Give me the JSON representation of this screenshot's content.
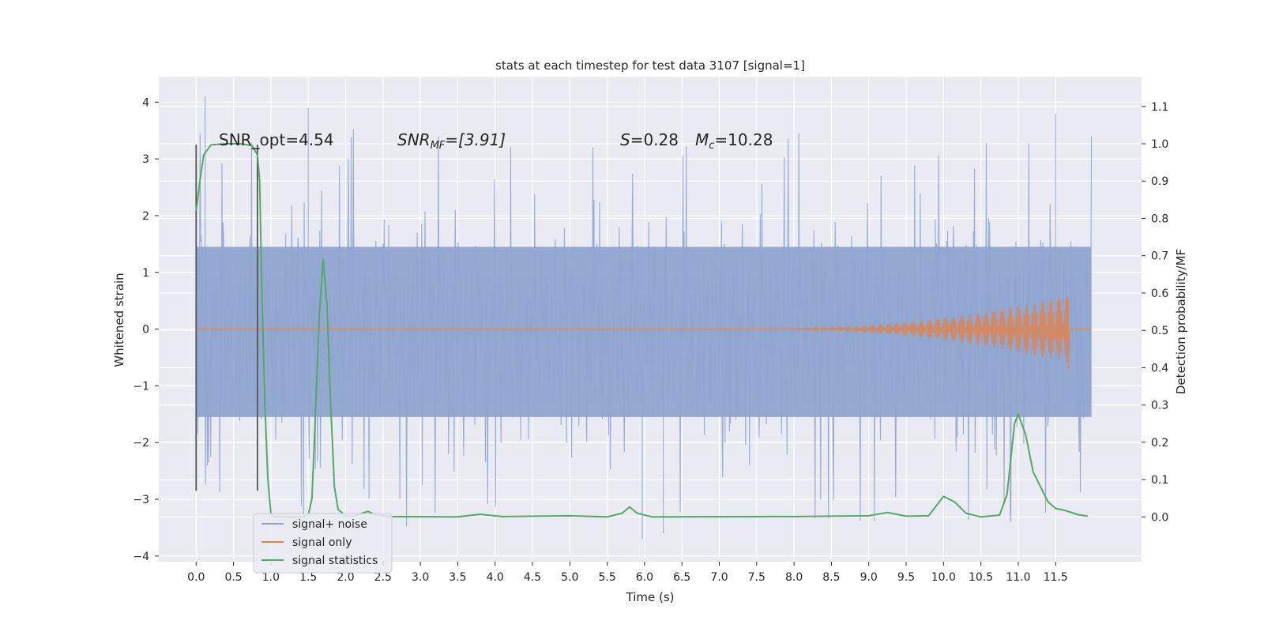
{
  "chart_data": {
    "type": "line",
    "title": "stats at each timestep for test data 3107 [signal=1]",
    "xlabel": "Time (s)",
    "ylabel_left": "Whitened strain",
    "ylabel_right": "Detection probability/MF",
    "xlim": [
      -0.5,
      12.65
    ],
    "ylim_left": [
      -4.1,
      4.45
    ],
    "ylim_right": [
      -0.12,
      1.18
    ],
    "x_ticks": [
      0.0,
      0.5,
      1.0,
      1.5,
      2.0,
      2.5,
      3.0,
      3.5,
      4.0,
      4.5,
      5.0,
      5.5,
      6.0,
      6.5,
      7.0,
      7.5,
      8.0,
      8.5,
      9.0,
      9.5,
      10.0,
      10.5,
      11.0,
      11.5
    ],
    "x_tick_labels": [
      "0.0",
      "0.5",
      "1.0",
      "1.5",
      "2.0",
      "2.5",
      "3.0",
      "3.5",
      "4.0",
      "4.5",
      "5.0",
      "5.5",
      "6.0",
      "6.5",
      "7.0",
      "7.5",
      "8.0",
      "8.5",
      "9.0",
      "9.5",
      "10.0",
      "10.5",
      "11.0",
      "11.5"
    ],
    "y_left_ticks": [
      -4,
      -3,
      -2,
      -1,
      0,
      1,
      2,
      3,
      4
    ],
    "y_left_tick_labels": [
      "−4",
      "−3",
      "−2",
      "−1",
      "0",
      "1",
      "2",
      "3",
      "4"
    ],
    "y_right_ticks": [
      0.0,
      0.1,
      0.2,
      0.3,
      0.4,
      0.5,
      0.6,
      0.7,
      0.8,
      0.9,
      1.0,
      1.1
    ],
    "y_right_tick_labels": [
      "0.0",
      "0.1",
      "0.2",
      "0.3",
      "0.4",
      "0.5",
      "0.6",
      "0.7",
      "0.8",
      "0.9",
      "1.0",
      "1.1"
    ],
    "grid": true,
    "legend_position": "lower-left",
    "background": "#eaeaf2",
    "annotations": {
      "snr_opt": "SNR_opt=4.54",
      "snr_mf_main": "SNR",
      "snr_mf_sub": "MF",
      "snr_mf_rest": "=[3.91]",
      "s_main": "S",
      "s_rest": "=0.28",
      "mc_main": "M",
      "mc_sub": "c",
      "mc_rest": "=10.28"
    },
    "vertical_markers": [
      {
        "x": 0.0,
        "y_range": [
          -2.85,
          3.25
        ]
      },
      {
        "x": 0.82,
        "y_range": [
          -2.85,
          3.25
        ]
      }
    ],
    "series": [
      {
        "name": "signal+ noise",
        "axis": "left",
        "color": "#8fa5cf",
        "kind": "noise",
        "x_range": [
          0.0,
          11.98
        ],
        "core_band": [
          -1.55,
          1.45
        ],
        "spike_range": [
          -3.7,
          4.1
        ],
        "notable_peaks": [
          [
            0.12,
            4.1
          ],
          [
            1.5,
            3.9
          ],
          [
            11.5,
            3.8
          ],
          [
            5.97,
            -3.7
          ],
          [
            6.25,
            -3.6
          ]
        ]
      },
      {
        "name": "signal only",
        "axis": "left",
        "color": "#dd8452",
        "kind": "chirp",
        "x_range": [
          0.0,
          11.98
        ],
        "start_growth": 7.5,
        "peak_time": 11.67,
        "peak_amplitude": 0.6
      },
      {
        "name": "signal statistics",
        "axis": "right",
        "color": "#55a868",
        "points": [
          [
            0.0,
            0.82
          ],
          [
            0.05,
            0.9
          ],
          [
            0.1,
            0.97
          ],
          [
            0.2,
            0.997
          ],
          [
            0.4,
            1.0
          ],
          [
            0.6,
            1.0
          ],
          [
            0.75,
            0.995
          ],
          [
            0.82,
            0.97
          ],
          [
            0.85,
            0.9
          ],
          [
            0.88,
            0.6
          ],
          [
            0.92,
            0.3
          ],
          [
            0.96,
            0.1
          ],
          [
            1.0,
            0.01
          ],
          [
            1.05,
            0.0
          ],
          [
            1.2,
            0.0
          ],
          [
            1.4,
            0.0
          ],
          [
            1.5,
            0.005
          ],
          [
            1.55,
            0.05
          ],
          [
            1.6,
            0.3
          ],
          [
            1.65,
            0.55
          ],
          [
            1.7,
            0.69
          ],
          [
            1.75,
            0.57
          ],
          [
            1.8,
            0.3
          ],
          [
            1.85,
            0.08
          ],
          [
            1.9,
            0.02
          ],
          [
            2.0,
            0.003
          ],
          [
            2.1,
            0.002
          ],
          [
            2.3,
            0.015
          ],
          [
            2.4,
            0.005
          ],
          [
            2.6,
            0.001
          ],
          [
            3.5,
            0.0
          ],
          [
            3.8,
            0.007
          ],
          [
            4.1,
            0.001
          ],
          [
            5.0,
            0.003
          ],
          [
            5.5,
            0.0
          ],
          [
            5.7,
            0.01
          ],
          [
            5.8,
            0.027
          ],
          [
            5.9,
            0.01
          ],
          [
            6.1,
            0.0
          ],
          [
            7.7,
            0.001
          ],
          [
            8.0,
            0.001
          ],
          [
            9.0,
            0.003
          ],
          [
            9.25,
            0.012
          ],
          [
            9.5,
            0.002
          ],
          [
            9.8,
            0.003
          ],
          [
            10.0,
            0.055
          ],
          [
            10.15,
            0.04
          ],
          [
            10.3,
            0.01
          ],
          [
            10.5,
            0.0
          ],
          [
            10.75,
            0.005
          ],
          [
            10.85,
            0.06
          ],
          [
            10.95,
            0.25
          ],
          [
            11.0,
            0.275
          ],
          [
            11.1,
            0.22
          ],
          [
            11.2,
            0.12
          ],
          [
            11.3,
            0.08
          ],
          [
            11.4,
            0.04
          ],
          [
            11.5,
            0.023
          ],
          [
            11.65,
            0.016
          ],
          [
            11.8,
            0.006
          ],
          [
            11.93,
            0.002
          ]
        ]
      }
    ]
  }
}
